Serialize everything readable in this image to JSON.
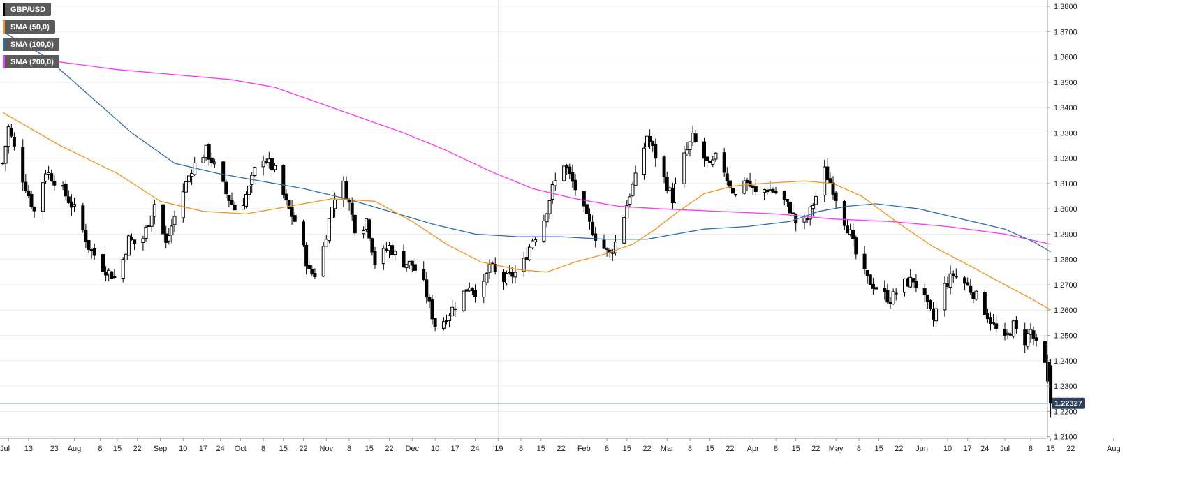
{
  "chart_data": {
    "type": "candlestick",
    "symbol": "GBP/USD",
    "legend": [
      {
        "label": "GBP/USD",
        "color": "#000000"
      },
      {
        "label": "SMA (50,0)",
        "color": "#f7931e"
      },
      {
        "label": "SMA (100,0)",
        "color": "#2e6db4"
      },
      {
        "label": "SMA (200,0)",
        "color": "#ff33ff"
      }
    ],
    "y_axis": {
      "ticks": [
        1.38,
        1.37,
        1.36,
        1.35,
        1.34,
        1.33,
        1.32,
        1.31,
        1.3,
        1.29,
        1.28,
        1.27,
        1.26,
        1.25,
        1.24,
        1.23,
        1.22,
        1.21
      ],
      "tick_labels": [
        "1.3800",
        "1.3700",
        "1.3600",
        "1.3500",
        "1.3400",
        "1.3300",
        "1.3200",
        "1.3100",
        "1.3000",
        "1.2900",
        "1.2800",
        "1.2700",
        "1.2600",
        "1.2500",
        "1.2400",
        "1.2300",
        "1.2200",
        "1.2100"
      ],
      "range": [
        1.2075,
        1.3825
      ]
    },
    "x_axis": {
      "labels": [
        "Jul",
        "13",
        "23",
        "Aug",
        "8",
        "15",
        "22",
        "Sep",
        "10",
        "17",
        "24",
        "Oct",
        "8",
        "15",
        "22",
        "Nov",
        "8",
        "15",
        "22",
        "Dec",
        "10",
        "17",
        "24",
        "'19",
        "8",
        "15",
        "22",
        "Feb",
        "8",
        "15",
        "22",
        "Mar",
        "8",
        "15",
        "22",
        "Apr",
        "8",
        "15",
        "22",
        "May",
        "8",
        "15",
        "22",
        "Jun",
        "10",
        "17",
        "24",
        "Jul",
        "8",
        "15",
        "22",
        "Aug"
      ],
      "label_positions": [
        2,
        9,
        18,
        25,
        34,
        40,
        47,
        55,
        63,
        70,
        76,
        83,
        91,
        98,
        105,
        113,
        121,
        128,
        135,
        143,
        151,
        158,
        165,
        173,
        181,
        188,
        195,
        203,
        211,
        218,
        225,
        232,
        240,
        247,
        254,
        262,
        270,
        277,
        284,
        291,
        299,
        306,
        313,
        321,
        330,
        337,
        343,
        350,
        359,
        366,
        373,
        388
      ]
    },
    "current_price": {
      "value": 1.2232,
      "label": "1.22327"
    },
    "price_anchors": [
      [
        0,
        1.318
      ],
      [
        2,
        1.332
      ],
      [
        7,
        1.312
      ],
      [
        11,
        1.299
      ],
      [
        15,
        1.315
      ],
      [
        20,
        1.309
      ],
      [
        26,
        1.298
      ],
      [
        30,
        1.285
      ],
      [
        35,
        1.277
      ],
      [
        40,
        1.272
      ],
      [
        44,
        1.288
      ],
      [
        48,
        1.285
      ],
      [
        53,
        1.302
      ],
      [
        57,
        1.286
      ],
      [
        62,
        1.304
      ],
      [
        66,
        1.316
      ],
      [
        71,
        1.323
      ],
      [
        75,
        1.315
      ],
      [
        78,
        1.306
      ],
      [
        82,
        1.298
      ],
      [
        86,
        1.308
      ],
      [
        90,
        1.322
      ],
      [
        95,
        1.315
      ],
      [
        99,
        1.302
      ],
      [
        103,
        1.293
      ],
      [
        107,
        1.275
      ],
      [
        110,
        1.274
      ],
      [
        115,
        1.301
      ],
      [
        118,
        1.313
      ],
      [
        121,
        1.302
      ],
      [
        124,
        1.288
      ],
      [
        127,
        1.296
      ],
      [
        130,
        1.279
      ],
      [
        135,
        1.285
      ],
      [
        139,
        1.279
      ],
      [
        143,
        1.278
      ],
      [
        147,
        1.27
      ],
      [
        151,
        1.254
      ],
      [
        154,
        1.256
      ],
      [
        158,
        1.262
      ],
      [
        163,
        1.27
      ],
      [
        167,
        1.265
      ],
      [
        170,
        1.278
      ],
      [
        174,
        1.271
      ],
      [
        178,
        1.274
      ],
      [
        181,
        1.276
      ],
      [
        185,
        1.288
      ],
      [
        188,
        1.292
      ],
      [
        192,
        1.308
      ],
      [
        196,
        1.318
      ],
      [
        200,
        1.308
      ],
      [
        204,
        1.296
      ],
      [
        208,
        1.287
      ],
      [
        212,
        1.282
      ],
      [
        215,
        1.289
      ],
      [
        219,
        1.306
      ],
      [
        222,
        1.315
      ],
      [
        225,
        1.329
      ],
      [
        228,
        1.321
      ],
      [
        231,
        1.312
      ],
      [
        234,
        1.304
      ],
      [
        237,
        1.318
      ],
      [
        241,
        1.328
      ],
      [
        244,
        1.322
      ],
      [
        247,
        1.316
      ],
      [
        250,
        1.322
      ],
      [
        253,
        1.312
      ],
      [
        256,
        1.305
      ],
      [
        259,
        1.312
      ],
      [
        263,
        1.306
      ],
      [
        267,
        1.308
      ],
      [
        271,
        1.306
      ],
      [
        275,
        1.3
      ],
      [
        278,
        1.292
      ],
      [
        281,
        1.296
      ],
      [
        284,
        1.305
      ],
      [
        287,
        1.315
      ],
      [
        290,
        1.308
      ],
      [
        293,
        1.298
      ],
      [
        296,
        1.29
      ],
      [
        299,
        1.278
      ],
      [
        302,
        1.272
      ],
      [
        306,
        1.268
      ],
      [
        310,
        1.264
      ],
      [
        314,
        1.27
      ],
      [
        318,
        1.272
      ],
      [
        322,
        1.264
      ],
      [
        325,
        1.256
      ],
      [
        328,
        1.268
      ],
      [
        332,
        1.274
      ],
      [
        335,
        1.272
      ],
      [
        338,
        1.268
      ],
      [
        341,
        1.264
      ],
      [
        344,
        1.258
      ],
      [
        347,
        1.252
      ],
      [
        350,
        1.248
      ],
      [
        353,
        1.254
      ],
      [
        356,
        1.246
      ],
      [
        359,
        1.252
      ],
      [
        362,
        1.243
      ],
      [
        364,
        1.238
      ],
      [
        366,
        1.2232
      ]
    ],
    "sma_50": [
      [
        0,
        1.338
      ],
      [
        20,
        1.325
      ],
      [
        40,
        1.314
      ],
      [
        55,
        1.303
      ],
      [
        70,
        1.299
      ],
      [
        85,
        1.298
      ],
      [
        100,
        1.301
      ],
      [
        115,
        1.304
      ],
      [
        130,
        1.303
      ],
      [
        143,
        1.295
      ],
      [
        155,
        1.286
      ],
      [
        167,
        1.279
      ],
      [
        180,
        1.276
      ],
      [
        190,
        1.275
      ],
      [
        200,
        1.279
      ],
      [
        210,
        1.282
      ],
      [
        220,
        1.286
      ],
      [
        228,
        1.292
      ],
      [
        236,
        1.299
      ],
      [
        245,
        1.306
      ],
      [
        255,
        1.309
      ],
      [
        265,
        1.31
      ],
      [
        280,
        1.311
      ],
      [
        290,
        1.31
      ],
      [
        300,
        1.305
      ],
      [
        312,
        1.295
      ],
      [
        325,
        1.285
      ],
      [
        337,
        1.278
      ],
      [
        350,
        1.27
      ],
      [
        360,
        1.264
      ],
      [
        366,
        1.26
      ]
    ],
    "sma_100": [
      [
        0,
        1.37
      ],
      [
        15,
        1.36
      ],
      [
        30,
        1.345
      ],
      [
        45,
        1.33
      ],
      [
        60,
        1.318
      ],
      [
        75,
        1.314
      ],
      [
        90,
        1.311
      ],
      [
        105,
        1.308
      ],
      [
        120,
        1.304
      ],
      [
        135,
        1.299
      ],
      [
        150,
        1.294
      ],
      [
        165,
        1.29
      ],
      [
        180,
        1.289
      ],
      [
        195,
        1.289
      ],
      [
        210,
        1.288
      ],
      [
        225,
        1.288
      ],
      [
        235,
        1.29
      ],
      [
        245,
        1.292
      ],
      [
        260,
        1.293
      ],
      [
        275,
        1.295
      ],
      [
        285,
        1.299
      ],
      [
        295,
        1.301
      ],
      [
        305,
        1.302
      ],
      [
        320,
        1.3
      ],
      [
        335,
        1.296
      ],
      [
        350,
        1.292
      ],
      [
        360,
        1.287
      ],
      [
        366,
        1.283
      ]
    ],
    "sma_200": [
      [
        0,
        1.359
      ],
      [
        20,
        1.358
      ],
      [
        40,
        1.355
      ],
      [
        60,
        1.353
      ],
      [
        80,
        1.351
      ],
      [
        95,
        1.348
      ],
      [
        110,
        1.342
      ],
      [
        125,
        1.336
      ],
      [
        140,
        1.33
      ],
      [
        155,
        1.323
      ],
      [
        170,
        1.315
      ],
      [
        185,
        1.308
      ],
      [
        200,
        1.304
      ],
      [
        215,
        1.301
      ],
      [
        230,
        1.3
      ],
      [
        250,
        1.299
      ],
      [
        270,
        1.298
      ],
      [
        290,
        1.296
      ],
      [
        310,
        1.295
      ],
      [
        330,
        1.293
      ],
      [
        350,
        1.29
      ],
      [
        366,
        1.286
      ]
    ]
  }
}
